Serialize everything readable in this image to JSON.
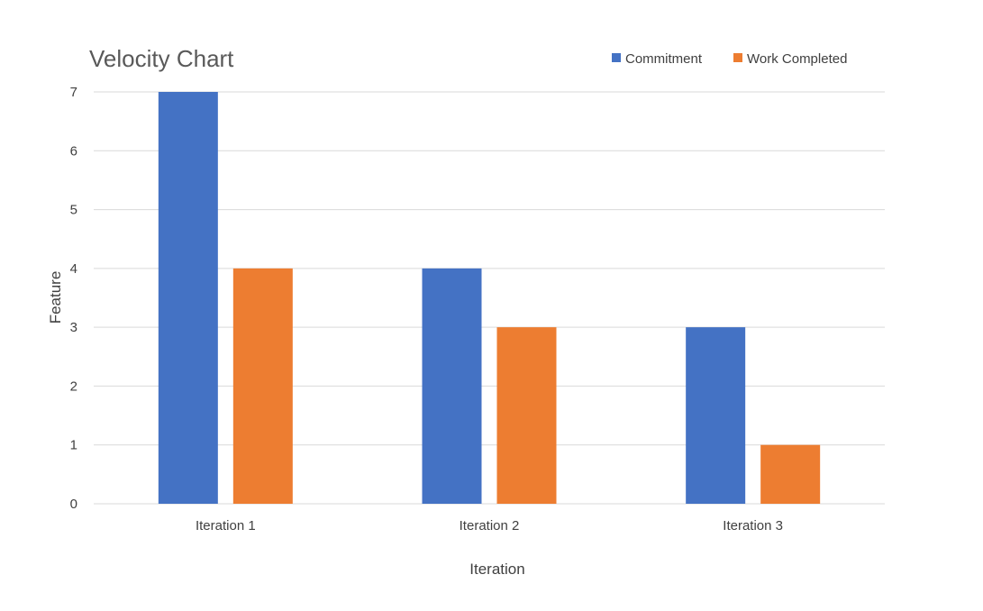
{
  "chart_data": {
    "type": "bar",
    "title": "Velocity Chart",
    "xlabel": "Iteration",
    "ylabel": "Feature",
    "categories": [
      "Iteration 1",
      "Iteration 2",
      "Iteration 3"
    ],
    "series": [
      {
        "name": "Commitment",
        "values": [
          7,
          4,
          3
        ],
        "color": "#4472C4"
      },
      {
        "name": "Work Completed",
        "values": [
          4,
          3,
          1
        ],
        "color": "#ED7D31"
      }
    ],
    "ylim": [
      0,
      7
    ],
    "yticks": [
      "0",
      "1",
      "2",
      "3",
      "4",
      "5",
      "6",
      "7"
    ],
    "grid": true,
    "legend_position": "top-right"
  }
}
